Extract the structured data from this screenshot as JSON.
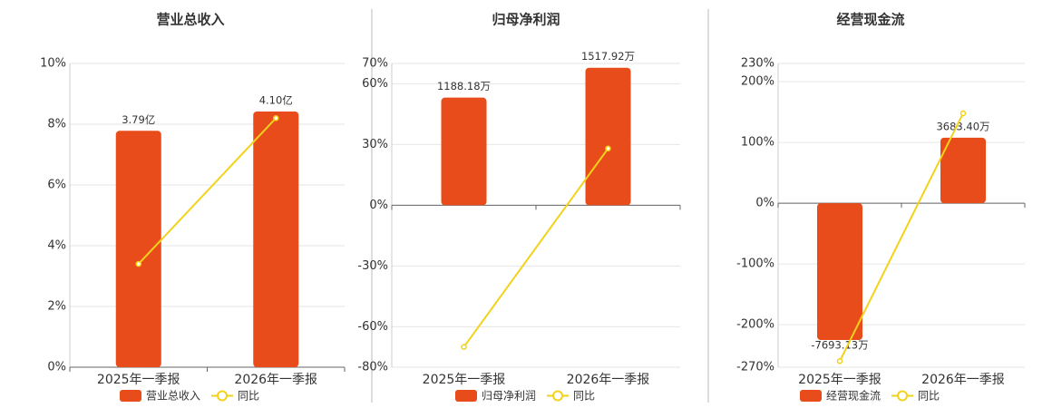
{
  "chart_data": [
    {
      "type": "bar-line",
      "title": "营业总收入",
      "categories": [
        "2025年一季报",
        "2026年一季报"
      ],
      "series": [
        {
          "name": "营业总收入",
          "color": "#e84c1a",
          "values": [
            3.79,
            4.1
          ],
          "value_labels": [
            "3.79亿",
            "4.10亿"
          ],
          "axis": "y2"
        },
        {
          "name": "同比",
          "color": "#f2d21b",
          "values": [
            3.4,
            8.2
          ]
        }
      ],
      "ylim": [
        0,
        10
      ],
      "yticks": [
        {
          "value": 0,
          "label": "0%"
        },
        {
          "value": 2,
          "label": "2%"
        },
        {
          "value": 4,
          "label": "4%"
        },
        {
          "value": 6,
          "label": "6%"
        },
        {
          "value": 8,
          "label": "8%"
        },
        {
          "value": 10,
          "label": "10%"
        }
      ],
      "y2lim": [
        0,
        4.87
      ],
      "grid": true
    },
    {
      "type": "bar-line",
      "title": "归母净利润",
      "categories": [
        "2025年一季报",
        "2026年一季报"
      ],
      "series": [
        {
          "name": "归母净利润",
          "color": "#e84c1a",
          "values": [
            1188.18,
            1517.92
          ],
          "value_labels": [
            "1188.18万",
            "1517.92万"
          ],
          "axis": "y2"
        },
        {
          "name": "同比",
          "color": "#f2d21b",
          "values": [
            -70,
            28
          ]
        }
      ],
      "ylim": [
        -80,
        70
      ],
      "yticks": [
        {
          "value": -80,
          "label": "-80%"
        },
        {
          "value": -60,
          "label": "-60%"
        },
        {
          "value": -30,
          "label": "-30%"
        },
        {
          "value": 0,
          "label": "0%"
        },
        {
          "value": 30,
          "label": "30%"
        },
        {
          "value": 60,
          "label": "60%"
        },
        {
          "value": 70,
          "label": "70%"
        }
      ],
      "y2lim": [
        -1788,
        1565
      ],
      "grid": true
    },
    {
      "type": "bar-line",
      "title": "经营现金流",
      "categories": [
        "2025年一季报",
        "2026年一季报"
      ],
      "series": [
        {
          "name": "经营现金流",
          "color": "#e84c1a",
          "values": [
            -7693.13,
            3683.4
          ],
          "value_labels": [
            "-7693.13万",
            "3683.40万"
          ],
          "axis": "y2"
        },
        {
          "name": "同比",
          "color": "#f2d21b",
          "values": [
            -260,
            148
          ]
        }
      ],
      "ylim": [
        -270,
        230
      ],
      "yticks": [
        {
          "value": -270,
          "label": "-270%"
        },
        {
          "value": -200,
          "label": "-200%"
        },
        {
          "value": -100,
          "label": "-100%"
        },
        {
          "value": 0,
          "label": "0%"
        },
        {
          "value": 100,
          "label": "100%"
        },
        {
          "value": 200,
          "label": "200%"
        },
        {
          "value": 230,
          "label": "230%"
        }
      ],
      "y2lim": [
        -9221,
        7855
      ],
      "grid": true
    }
  ]
}
